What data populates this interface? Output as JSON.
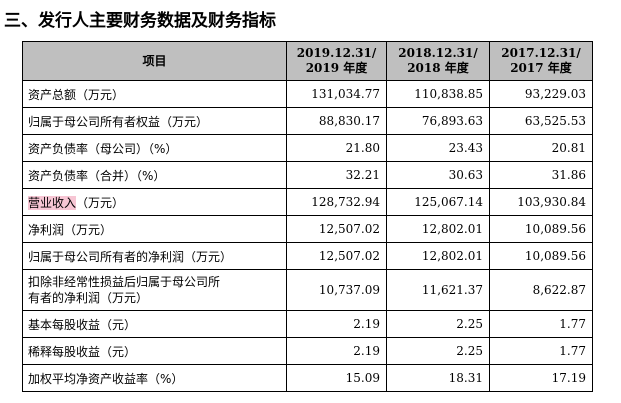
{
  "heading": "三、发行人主要财务数据及财务指标",
  "table": {
    "item_header": "项目",
    "period_headers": [
      {
        "line1": "2019.12.31/",
        "line2": "2019 年度"
      },
      {
        "line1": "2018.12.31/",
        "line2": "2018 年度"
      },
      {
        "line1": "2017.12.31/",
        "line2": "2017 年度"
      }
    ],
    "rows": [
      {
        "label": "资产总额（万元）",
        "values": [
          "131,034.77",
          "110,838.85",
          "93,229.03"
        ]
      },
      {
        "label": "归属于母公司所有者权益（万元）",
        "values": [
          "88,830.17",
          "76,893.63",
          "63,525.53"
        ]
      },
      {
        "label": "资产负债率（母公司）（%）",
        "values": [
          "21.80",
          "23.43",
          "20.81"
        ]
      },
      {
        "label": "资产负债率（合并）（%）",
        "values": [
          "32.21",
          "30.63",
          "31.86"
        ]
      },
      {
        "label_highlight": "营业收入",
        "label_rest": "（万元）",
        "values": [
          "128,732.94",
          "125,067.14",
          "103,930.84"
        ]
      },
      {
        "label": "净利润（万元）",
        "values": [
          "12,507.02",
          "12,802.01",
          "10,089.56"
        ]
      },
      {
        "label": "归属于母公司所有者的净利润（万元）",
        "values": [
          "12,507.02",
          "12,802.01",
          "10,089.56"
        ]
      },
      {
        "label_line1": "扣除非经常性损益后归属于母公司所",
        "label_line2": "有者的净利润（万元）",
        "values": [
          "10,737.09",
          "11,621.37",
          "8,622.87"
        ]
      },
      {
        "label": "基本每股收益（元）",
        "values": [
          "2.19",
          "2.25",
          "1.77"
        ]
      },
      {
        "label": "稀释每股收益（元）",
        "values": [
          "2.19",
          "2.25",
          "1.77"
        ]
      },
      {
        "label": "加权平均净资产收益率（%）",
        "values": [
          "15.09",
          "18.31",
          "17.19"
        ]
      }
    ]
  }
}
